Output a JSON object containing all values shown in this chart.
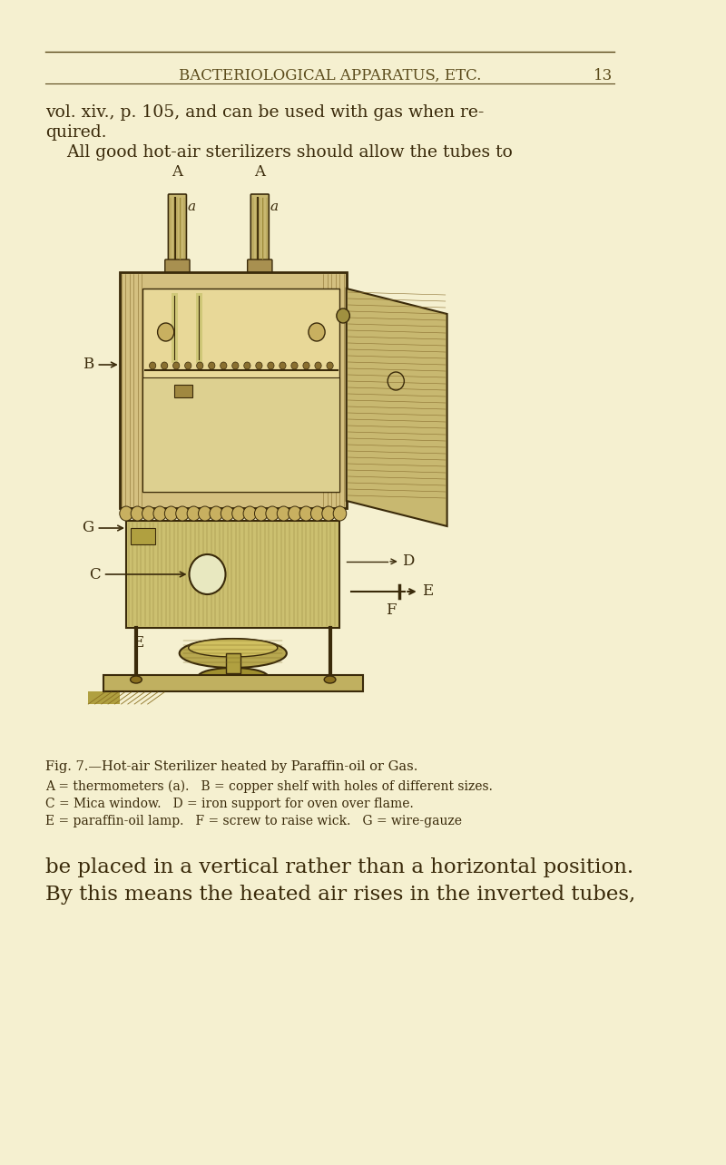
{
  "bg_color": "#f5f0d0",
  "page_bg": "#f5f0d0",
  "header_text": "BACTERIOLOGICAL APPARATUS, ETC.",
  "page_number": "13",
  "header_color": "#5a4a1a",
  "line_color": "#5a4a1a",
  "body_text_color": "#3a2a0a",
  "body_font_size": 13.5,
  "header_font_size": 12,
  "caption_title": "Fig. 7.—Hot-air Sterilizer heated by Paraffin-oil or Gas.",
  "caption_body": "A = thermometers (a).   B = copper shelf with holes of different sizes.\nC = Mica window.   D = iron support for oven over flame.\nE = paraffin-oil lamp.   F = screw to raise wick.   G = wire-gauze",
  "footer_text": "be placed in a vertical rather than a horizontal position.\nBy this means the heated air rises in the inverted tubes,",
  "footer_font_size": 16.5
}
